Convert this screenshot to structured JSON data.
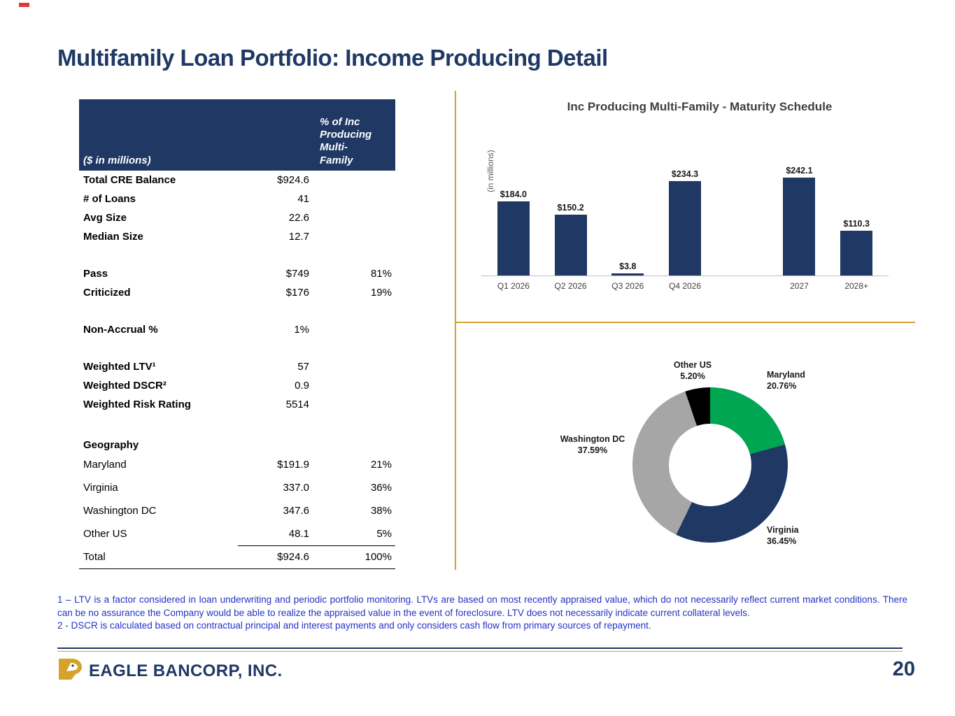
{
  "slide": {
    "title": "Multifamily Loan Portfolio: Income Producing Detail"
  },
  "table": {
    "header_left": "($ in millions)",
    "header_right": "% of Inc Producing Multi-Family",
    "rows": [
      {
        "type": "data",
        "label": "Total CRE Balance",
        "value": "$924.6",
        "pct": ""
      },
      {
        "type": "data",
        "label": "# of Loans",
        "value": "41",
        "pct": ""
      },
      {
        "type": "data",
        "label": "Avg Size",
        "value": "22.6",
        "pct": ""
      },
      {
        "type": "data",
        "label": "Median Size",
        "value": "12.7",
        "pct": ""
      },
      {
        "type": "spacer"
      },
      {
        "type": "data",
        "label": "Pass",
        "value": "$749",
        "pct": "81%"
      },
      {
        "type": "data",
        "label": "Criticized",
        "value": "$176",
        "pct": "19%"
      },
      {
        "type": "spacer"
      },
      {
        "type": "data",
        "label": "Non-Accrual %",
        "value": "1%",
        "pct": ""
      },
      {
        "type": "spacer"
      },
      {
        "type": "data",
        "label": "Weighted LTV¹",
        "value": "57",
        "pct": ""
      },
      {
        "type": "data",
        "label": "Weighted DSCR²",
        "value": "0.9",
        "pct": ""
      },
      {
        "type": "data",
        "label": "Weighted Risk Rating",
        "value": "5514",
        "pct": ""
      },
      {
        "type": "spacer"
      },
      {
        "type": "section",
        "label": "Geography"
      },
      {
        "type": "data",
        "geo": true,
        "label": "Maryland",
        "value": "$191.9",
        "pct": "21%"
      },
      {
        "type": "data",
        "geo": true,
        "label": "Virginia",
        "value": "337.0",
        "pct": "36%"
      },
      {
        "type": "data",
        "geo": true,
        "label": "Washington DC",
        "value": "347.6",
        "pct": "38%"
      },
      {
        "type": "data",
        "geo": true,
        "label": "Other US",
        "value": "48.1",
        "pct": "5%",
        "underline": true
      },
      {
        "type": "data",
        "geo": true,
        "label": "Total",
        "value": "$924.6",
        "pct": "100%",
        "underline_full": true
      }
    ]
  },
  "chart_data": [
    {
      "type": "bar",
      "title": "Inc Producing Multi-Family - Maturity Schedule",
      "ylabel": "(in millions)",
      "xlabel": "",
      "categories": [
        "Q1 2026",
        "Q2 2026",
        "Q3 2026",
        "Q4 2026",
        "2027",
        "2028+"
      ],
      "values": [
        184.0,
        150.2,
        3.8,
        234.3,
        242.1,
        110.3
      ],
      "value_labels": [
        "$184.0",
        "$150.2",
        "$3.8",
        "$234.3",
        "$242.1",
        "$110.3"
      ],
      "ylim": [
        0,
        260
      ],
      "bar_color": "#1F3864",
      "gap_after_index": 3,
      "grid": false,
      "legend": "none"
    },
    {
      "type": "pie",
      "donut": true,
      "title": "",
      "slices": [
        {
          "label": "Maryland",
          "value": 20.76,
          "pct_label": "20.76%",
          "color": "#00A651"
        },
        {
          "label": "Virginia",
          "value": 36.45,
          "pct_label": "36.45%",
          "color": "#1F3864"
        },
        {
          "label": "Washington DC",
          "value": 37.59,
          "pct_label": "37.59%",
          "color": "#A6A6A6"
        },
        {
          "label": "Other US",
          "value": 5.2,
          "pct_label": "5.20%",
          "color": "#000000"
        }
      ]
    }
  ],
  "footnotes": [
    "1 – LTV is a factor considered in loan underwriting and periodic portfolio monitoring. LTVs are based on most recently appraised value, which do not necessarily reflect current market conditions. There can be no assurance the Company would be able to realize the appraised value in the event of foreclosure. LTV does not necessarily indicate current collateral levels.",
    "2 - DSCR is calculated based on contractual principal and interest payments and only considers cash flow from primary sources of repayment."
  ],
  "footer": {
    "logo_icon": "eagle-logo-icon",
    "logo_text": "EAGLE BANCORP, INC.",
    "page_number": "20"
  },
  "colors": {
    "navy": "#1F3864",
    "gold": "#D6A32A",
    "green": "#00A651",
    "gray": "#A6A6A6",
    "black": "#000000",
    "footnote_blue": "#2433C6"
  }
}
